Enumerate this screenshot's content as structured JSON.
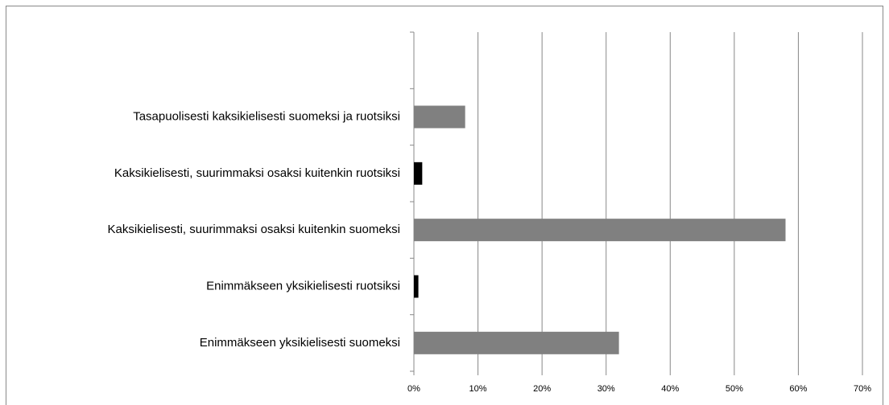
{
  "chart_data": {
    "type": "bar",
    "orientation": "horizontal",
    "categories": [
      null,
      "Tasapuolisesti kaksikielisesti suomeksi ja ruotsiksi",
      "Kaksikielisesti, suurimmaksi osaksi kuitenkin ruotsiksi",
      "Kaksikielisesti, suurimmaksi osaksi kuitenkin suomeksi",
      "Enimmäkseen yksikielisesti ruotsiksi",
      "Enimmäkseen yksikielisesti suomeksi"
    ],
    "values": [
      null,
      8,
      1.3,
      58,
      0.7,
      32
    ],
    "colors": [
      null,
      "#808080",
      "#000000",
      "#808080",
      "#000000",
      "#808080"
    ],
    "xlim": [
      0,
      70
    ],
    "xticks": [
      {
        "value": 0,
        "label": "0%"
      },
      {
        "value": 10,
        "label": "10%"
      },
      {
        "value": 20,
        "label": "20%"
      },
      {
        "value": 30,
        "label": "30%"
      },
      {
        "value": 40,
        "label": "40%"
      },
      {
        "value": 50,
        "label": "50%"
      },
      {
        "value": 60,
        "label": "60%"
      },
      {
        "value": 70,
        "label": "70%"
      }
    ],
    "grid": true
  }
}
